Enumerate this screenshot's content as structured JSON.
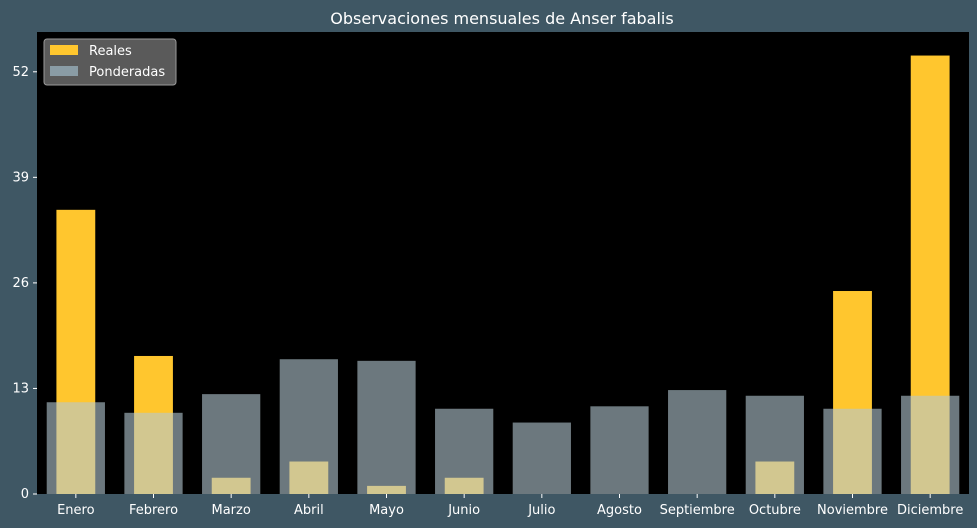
{
  "chart_data": {
    "type": "bar",
    "title": "Observaciones mensuales de Anser fabalis",
    "xlabel": "",
    "ylabel": "",
    "categories": [
      "Enero",
      "Febrero",
      "Marzo",
      "Abril",
      "Mayo",
      "Junio",
      "Julio",
      "Agosto",
      "Septiembre",
      "Octubre",
      "Noviembre",
      "Diciembre"
    ],
    "series": [
      {
        "name": "Reales",
        "values": [
          35,
          17,
          2,
          4,
          1,
          2,
          0,
          0,
          0,
          4,
          25,
          54
        ]
      },
      {
        "name": "Ponderadas",
        "values": [
          11.3,
          10,
          12.3,
          16.6,
          16.4,
          10.5,
          8.8,
          10.8,
          12.8,
          12.1,
          10.5,
          12.1
        ]
      }
    ],
    "ylim": [
      0,
      56.9
    ],
    "yticks": [
      0,
      13,
      26,
      39,
      52
    ],
    "grid": false,
    "legend_position": "top-left",
    "colors": {
      "figure_bg": "#3f5764",
      "plot_bg": "#000000",
      "reales": "#ffc62e",
      "ponderadas": "#b4c8d2",
      "ponderadas_opacity": 0.6,
      "text": "#ffffff"
    }
  }
}
